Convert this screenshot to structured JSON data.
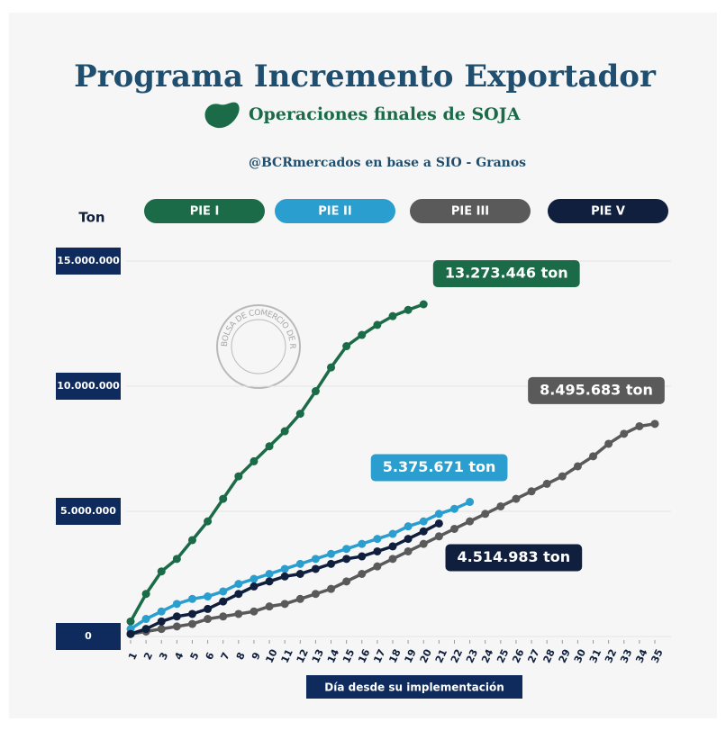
{
  "chart_data": {
    "type": "line",
    "title": "Programa Incremento Exportador",
    "subtitle": "Operaciones finales de SOJA",
    "source": "@BCRmercados en base a  SIO - Granos",
    "watermark": "BOLSA DE COMERCIO DE ROSARIO",
    "y_label": "Ton",
    "x_label": "Día desde su implementación",
    "x": [
      1,
      2,
      3,
      4,
      5,
      6,
      7,
      8,
      9,
      10,
      11,
      12,
      13,
      14,
      15,
      16,
      17,
      18,
      19,
      20,
      21,
      22,
      23,
      24,
      25,
      26,
      27,
      28,
      29,
      30,
      31,
      32,
      33,
      34,
      35
    ],
    "xlim": [
      1,
      35
    ],
    "xticks": [
      1,
      2,
      3,
      4,
      5,
      6,
      7,
      8,
      9,
      10,
      11,
      12,
      13,
      14,
      15,
      16,
      17,
      18,
      19,
      20,
      21,
      22,
      23,
      24,
      25,
      26,
      27,
      28,
      29,
      30,
      31,
      32,
      33,
      34,
      35
    ],
    "ylim": [
      0,
      15000000
    ],
    "yticks": [
      0,
      {
        "value": 5000000,
        "label": "5.000.000"
      },
      {
        "value": 10000000,
        "label": "10.000.000"
      },
      {
        "value": 15000000,
        "label": "15.000.000"
      }
    ],
    "grid": true,
    "series": [
      {
        "name": "PIE I",
        "color": "#1b6b48",
        "end_label": "13.273.446 ton",
        "values": [
          600000,
          1700000,
          2600000,
          3100000,
          3850000,
          4600000,
          5500000,
          6400000,
          7000000,
          7600000,
          8200000,
          8900000,
          9800000,
          10750000,
          11600000,
          12050000,
          12450000,
          12800000,
          13050000,
          13273446,
          null,
          null,
          null,
          null,
          null,
          null,
          null,
          null,
          null,
          null,
          null,
          null,
          null,
          null,
          null
        ]
      },
      {
        "name": "PIE II",
        "color": "#2a9ecf",
        "end_label": "5.375.671 ton",
        "values": [
          300000,
          700000,
          1000000,
          1300000,
          1500000,
          1600000,
          1800000,
          2100000,
          2300000,
          2500000,
          2700000,
          2900000,
          3100000,
          3300000,
          3500000,
          3700000,
          3900000,
          4100000,
          4400000,
          4600000,
          4900000,
          5100000,
          5375671,
          null,
          null,
          null,
          null,
          null,
          null,
          null,
          null,
          null,
          null,
          null,
          null
        ]
      },
      {
        "name": "PIE III",
        "color": "#5a5a5a",
        "end_label": "8.495.683 ton",
        "values": [
          100000,
          200000,
          300000,
          400000,
          500000,
          700000,
          800000,
          900000,
          1000000,
          1200000,
          1300000,
          1500000,
          1700000,
          1900000,
          2200000,
          2500000,
          2800000,
          3100000,
          3400000,
          3700000,
          4000000,
          4300000,
          4600000,
          4900000,
          5200000,
          5500000,
          5800000,
          6100000,
          6400000,
          6800000,
          7200000,
          7700000,
          8100000,
          8400000,
          8495683
        ]
      },
      {
        "name": "PIE V",
        "color": "#0f1f3d",
        "end_label": "4.514.983 ton",
        "values": [
          100000,
          300000,
          600000,
          800000,
          900000,
          1100000,
          1400000,
          1700000,
          2000000,
          2200000,
          2400000,
          2500000,
          2700000,
          2900000,
          3100000,
          3200000,
          3400000,
          3600000,
          3900000,
          4200000,
          4514983,
          null,
          null,
          null,
          null,
          null,
          null,
          null,
          null,
          null,
          null,
          null,
          null,
          null,
          null
        ]
      }
    ]
  }
}
